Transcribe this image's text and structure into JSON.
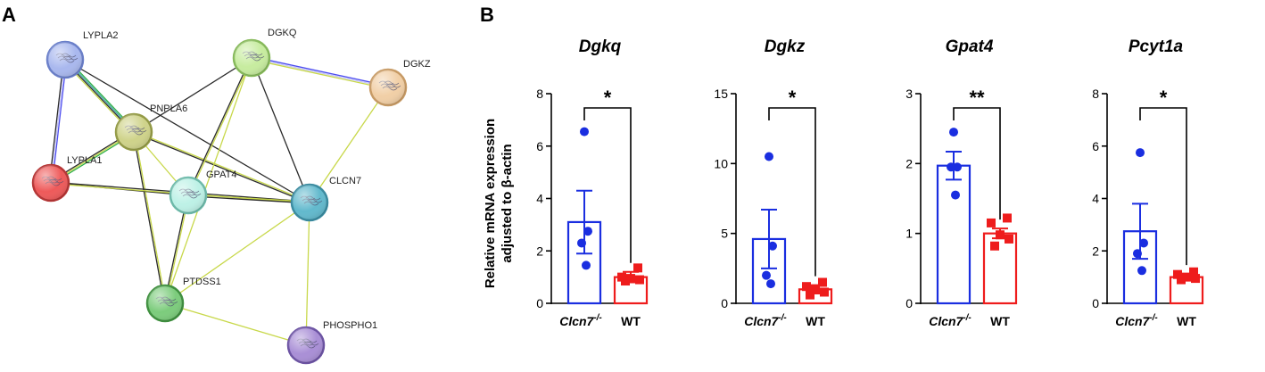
{
  "panels": {
    "a_label": "A",
    "b_label": "B"
  },
  "network": {
    "nodes": [
      {
        "id": "LYPLA2",
        "label": "LYPLA2",
        "color": "#a9b8ee",
        "border": "#6a7fc9"
      },
      {
        "id": "DGKQ",
        "label": "DGKQ",
        "color": "#c7ec9f",
        "border": "#86b95a"
      },
      {
        "id": "DGKZ",
        "label": "DGKZ",
        "color": "#f1cfa6",
        "border": "#c79a64"
      },
      {
        "id": "PNPLA6",
        "label": "PNPLA6",
        "color": "#cfd38a",
        "border": "#939a45"
      },
      {
        "id": "LYPLA1",
        "label": "LYPLA1",
        "color": "#ee5a5a",
        "border": "#b53535"
      },
      {
        "id": "GPAT4",
        "label": "GPAT4",
        "color": "#bdf1e6",
        "border": "#6cb9a9"
      },
      {
        "id": "CLCN7",
        "label": "CLCN7",
        "color": "#62b9cd",
        "border": "#3a8ba0"
      },
      {
        "id": "PTDSS1",
        "label": "PTDSS1",
        "color": "#7ccc7c",
        "border": "#3e8f3e"
      },
      {
        "id": "PHOSPHO1",
        "label": "PHOSPHO1",
        "color": "#a98fd6",
        "border": "#6c53a3"
      }
    ],
    "edges": [
      {
        "a": "LYPLA2",
        "b": "PNPLA6",
        "colors": [
          "#2fae48",
          "#3aa6a0",
          "#2a2a2a",
          "#c8d84a"
        ]
      },
      {
        "a": "LYPLA2",
        "b": "LYPLA1",
        "colors": [
          "#4d4df0",
          "#c6c6f5",
          "#2a2a2a"
        ]
      },
      {
        "a": "LYPLA2",
        "b": "CLCN7",
        "colors": [
          "#2a2a2a"
        ]
      },
      {
        "a": "PNPLA6",
        "b": "LYPLA1",
        "colors": [
          "#2fae48",
          "#c8d84a",
          "#2a2a2a"
        ]
      },
      {
        "a": "PNPLA6",
        "b": "DGKQ",
        "colors": [
          "#2a2a2a"
        ]
      },
      {
        "a": "PNPLA6",
        "b": "GPAT4",
        "colors": [
          "#c8d84a"
        ]
      },
      {
        "a": "PNPLA6",
        "b": "CLCN7",
        "colors": [
          "#c8d84a",
          "#2a2a2a"
        ]
      },
      {
        "a": "PNPLA6",
        "b": "PTDSS1",
        "colors": [
          "#c8d84a",
          "#2a2a2a"
        ]
      },
      {
        "a": "LYPLA1",
        "b": "GPAT4",
        "colors": [
          "#2a2a2a"
        ]
      },
      {
        "a": "LYPLA1",
        "b": "CLCN7",
        "colors": [
          "#2a2a2a",
          "#c8d84a"
        ]
      },
      {
        "a": "DGKQ",
        "b": "DGKZ",
        "colors": [
          "#4d4df0",
          "#c6c6f5",
          "#c8d84a"
        ]
      },
      {
        "a": "DGKQ",
        "b": "GPAT4",
        "colors": [
          "#c8d84a",
          "#2a2a2a"
        ]
      },
      {
        "a": "DGKQ",
        "b": "CLCN7",
        "colors": [
          "#2a2a2a"
        ]
      },
      {
        "a": "DGKQ",
        "b": "PTDSS1",
        "colors": [
          "#c8d84a"
        ]
      },
      {
        "a": "DGKZ",
        "b": "CLCN7",
        "colors": [
          "#c8d84a"
        ]
      },
      {
        "a": "GPAT4",
        "b": "CLCN7",
        "colors": [
          "#c8d84a",
          "#2a2a2a"
        ]
      },
      {
        "a": "GPAT4",
        "b": "PTDSS1",
        "colors": [
          "#c8d84a",
          "#2a2a2a"
        ]
      },
      {
        "a": "CLCN7",
        "b": "PTDSS1",
        "colors": [
          "#c8d84a"
        ]
      },
      {
        "a": "CLCN7",
        "b": "PHOSPHO1",
        "colors": [
          "#c8d84a"
        ]
      },
      {
        "a": "PTDSS1",
        "b": "PHOSPHO1",
        "colors": [
          "#c8d84a"
        ]
      }
    ]
  },
  "chart_data": [
    {
      "type": "bar",
      "title": "Dgkq",
      "ylabel": "Relative mRNA expression adjusted to β-actin",
      "ylim": [
        0,
        8
      ],
      "yticks": [
        "0",
        "2",
        "4",
        "6",
        "8"
      ],
      "categories": [
        "Clcn7",
        "WT"
      ],
      "category_superscript": [
        "-/-",
        ""
      ],
      "series": [
        {
          "name": "Clcn7-/-",
          "mean": 3.1,
          "sem": 1.2,
          "points": [
            6.55,
            2.75,
            2.3,
            1.45
          ],
          "color": "#1a2ee0"
        },
        {
          "name": "WT",
          "mean": 1.0,
          "sem": 0.2,
          "points": [
            1.35,
            1.0,
            0.95,
            0.9,
            0.85
          ],
          "color": "#ee1c1c"
        }
      ],
      "significance": "*"
    },
    {
      "type": "bar",
      "title": "Dgkz",
      "ylim": [
        0,
        15
      ],
      "yticks": [
        "0",
        "5",
        "10",
        "15"
      ],
      "categories": [
        "Clcn7",
        "WT"
      ],
      "category_superscript": [
        "-/-",
        ""
      ],
      "series": [
        {
          "name": "Clcn7-/-",
          "mean": 4.6,
          "sem": 2.1,
          "points": [
            10.5,
            4.1,
            2.0,
            1.4
          ],
          "color": "#1a2ee0"
        },
        {
          "name": "WT",
          "mean": 1.0,
          "sem": 0.3,
          "points": [
            1.5,
            1.2,
            1.0,
            0.8,
            0.6
          ],
          "color": "#ee1c1c"
        }
      ],
      "significance": "*"
    },
    {
      "type": "bar",
      "title": "Gpat4",
      "ylim": [
        0,
        3
      ],
      "yticks": [
        "0",
        "1",
        "2",
        "3"
      ],
      "categories": [
        "Clcn7",
        "WT"
      ],
      "category_superscript": [
        "-/-",
        ""
      ],
      "series": [
        {
          "name": "Clcn7-/-",
          "mean": 1.97,
          "sem": 0.2,
          "points": [
            2.45,
            1.95,
            1.95,
            1.55
          ],
          "color": "#1a2ee0"
        },
        {
          "name": "WT",
          "mean": 1.0,
          "sem": 0.07,
          "points": [
            1.22,
            1.15,
            0.98,
            0.92,
            0.82
          ],
          "color": "#ee1c1c"
        }
      ],
      "significance": "**"
    },
    {
      "type": "bar",
      "title": "Pcyt1a",
      "ylim": [
        0,
        8
      ],
      "yticks": [
        "0",
        "2",
        "4",
        "6",
        "8"
      ],
      "categories": [
        "Clcn7",
        "WT"
      ],
      "category_superscript": [
        "-/-",
        ""
      ],
      "series": [
        {
          "name": "Clcn7-/-",
          "mean": 2.75,
          "sem": 1.05,
          "points": [
            5.75,
            2.3,
            1.9,
            1.25
          ],
          "color": "#1a2ee0"
        },
        {
          "name": "WT",
          "mean": 1.0,
          "sem": 0.12,
          "points": [
            1.2,
            1.1,
            1.0,
            0.95,
            0.9
          ],
          "color": "#ee1c1c"
        }
      ],
      "significance": "*"
    }
  ]
}
